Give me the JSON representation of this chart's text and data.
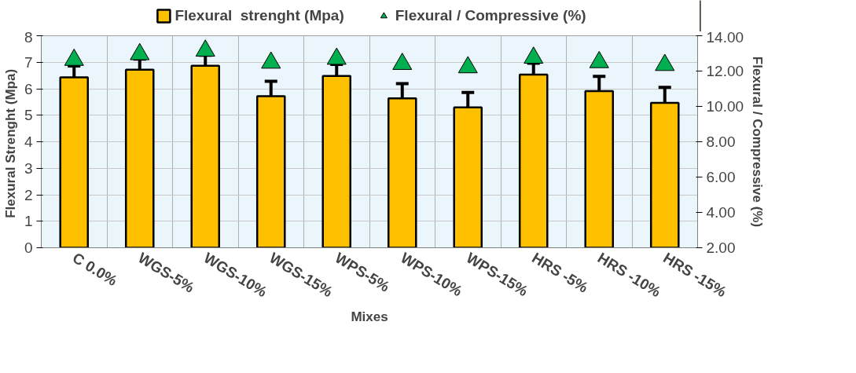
{
  "chart_data": {
    "type": "bar",
    "xlabel": "Mixes",
    "ylabel": "Flexural  Strenght (Mpa)",
    "y2label": "Flexural / Compressive (%)",
    "categories": [
      "C 0.0%",
      "WGS-5%",
      "WGS-10%",
      "WGS-15%",
      "WPS-5%",
      "WPS-10%",
      "WPS-15%",
      "HRS -5%",
      "HRS -10%",
      "HRS -15%"
    ],
    "series": [
      {
        "name": "Flexural  strenght (Mpa)",
        "color": "#ffc000",
        "values": [
          6.43,
          6.72,
          6.87,
          5.72,
          6.48,
          5.64,
          5.3,
          6.53,
          5.91,
          5.47
        ],
        "errors": [
          0.43,
          0.4,
          0.4,
          0.56,
          0.44,
          0.55,
          0.56,
          0.43,
          0.56,
          0.58
        ]
      },
      {
        "name": "Flexural / Compressive (%)",
        "type": "scatter",
        "axis": "y2",
        "marker": "triangle",
        "color": "#00b050",
        "values": [
          12.63,
          12.95,
          13.15,
          12.47,
          12.69,
          12.4,
          12.21,
          12.75,
          12.5,
          12.34
        ]
      }
    ],
    "ylim": [
      0,
      8
    ],
    "yticks": [
      0,
      1,
      2,
      3,
      4,
      5,
      6,
      7,
      8
    ],
    "y2lim": [
      2,
      14
    ],
    "y2ticks": [
      {
        "value": 2,
        "label": "2.00"
      },
      {
        "value": 4,
        "label": "4.00"
      },
      {
        "value": 6,
        "label": "6.00"
      },
      {
        "value": 8,
        "label": "8.00"
      },
      {
        "value": 10,
        "label": "10.00"
      },
      {
        "value": 12,
        "label": "12.00"
      },
      {
        "value": 14,
        "label": "14.00"
      }
    ],
    "grid": true,
    "legend": "top"
  }
}
